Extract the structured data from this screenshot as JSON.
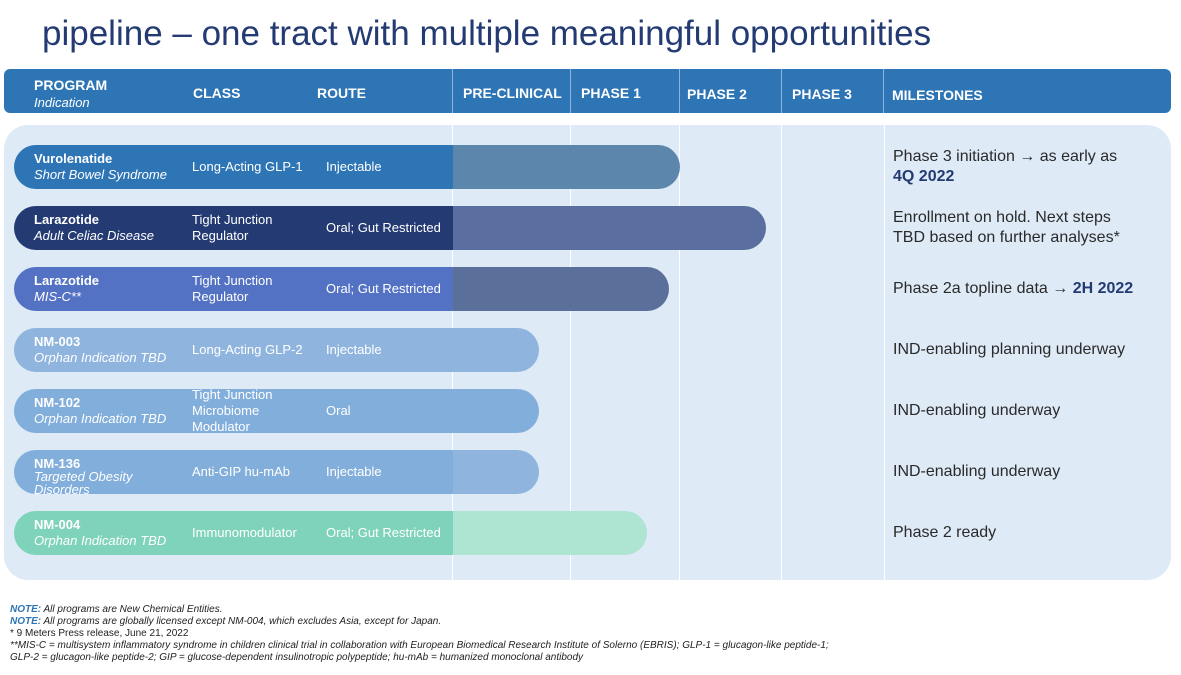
{
  "title": "pipeline – one tract with multiple meaningful opportunities",
  "header": {
    "program": "PROGRAM",
    "indication": "Indication",
    "class": "CLASS",
    "route": "ROUTE",
    "preclinical": "PRE-CLINICAL",
    "phase1": "PHASE 1",
    "phase2": "PHASE 2",
    "phase3": "PHASE 3",
    "milestones": "MILESTONES"
  },
  "chart_data": {
    "type": "bar",
    "orientation": "horizontal",
    "stages": [
      "PRE-CLINICAL",
      "PHASE 1",
      "PHASE 2",
      "PHASE 3"
    ],
    "programs": [
      {
        "program": "Vurolenatide",
        "indication": "Short Bowel Syndrome",
        "class_lines": [
          "Long-Acting  GLP-1"
        ],
        "route": "Injectable",
        "progress_stages": 2.1,
        "color": "#2e75b6",
        "right_color": "#5d86ad",
        "milestone_text": "Phase 3 initiation → as early as",
        "milestone_bold": "4Q 2022"
      },
      {
        "program": "Larazotide",
        "indication": "Adult Celiac Disease",
        "class_lines": [
          "Tight Junction",
          "Regulator"
        ],
        "route": "Oral; Gut Restricted",
        "progress_stages": 2.9,
        "color": "#243a73",
        "right_color": "#5a6f9f",
        "milestone_text": "Enrollment on hold.  Next steps",
        "milestone_text2": "TBD based on further analyses*"
      },
      {
        "program": "Larazotide",
        "indication": "MIS-C**",
        "class_lines": [
          "Tight Junction",
          "Regulator"
        ],
        "route": "Oral; Gut Restricted",
        "progress_stages": 2.0,
        "color": "#5472c4",
        "right_color": "#5b6f9b",
        "milestone_text": "Phase 2a topline data → ",
        "milestone_bold": "2H 2022"
      },
      {
        "program": "NM-003",
        "indication": "Orphan  Indication TBD",
        "class_lines": [
          "Long-Acting  GLP-2"
        ],
        "route": "Injectable",
        "progress_stages": 0.8,
        "color": "#8fb5df",
        "right_color": "#8fb5df",
        "milestone_text": "IND-enabling planning underway"
      },
      {
        "program": "NM-102",
        "indication": "Orphan  Indication TBD",
        "class_lines": [
          "Tight Junction",
          "Microbiome",
          "Modulator"
        ],
        "route": "Oral",
        "progress_stages": 0.8,
        "color": "#82aedb",
        "right_color": "#82aedb",
        "milestone_text": "IND-enabling underway"
      },
      {
        "program": "NM-136",
        "indication": "Targeted Obesity Disorders",
        "class_lines": [
          "Anti-GIP  hu-mAb"
        ],
        "route": "Injectable",
        "progress_stages": 0.8,
        "color": "#82aedb",
        "right_color": "#8fb5df",
        "milestone_text": "IND-enabling underway"
      },
      {
        "program": "NM-004",
        "indication": "Orphan  Indication TBD",
        "class_lines": [
          "Immunomodulator"
        ],
        "route": "Oral; Gut Restricted",
        "progress_stages": 1.8,
        "color": "#7fd3bb",
        "right_color": "#aee4d2",
        "milestone_text": "Phase 2 ready"
      }
    ]
  },
  "notes": {
    "n1_label": "NOTE:",
    "n1": " All programs are New Chemical Entities.",
    "n2_label": "NOTE:",
    "n2": " All programs are globally licensed except NM-004, which excludes Asia, except for Japan.",
    "n3": "* 9 Meters Press release, June 21, 2022",
    "n4": "**MIS-C = multisystem inflammatory syndrome in children clinical trial in collaboration with European Biomedical Research Institute of Solerno (EBRIS); GLP-1 = glucagon-like peptide-1;",
    "n5": "GLP-2 = glucagon-like peptide-2; GIP = glucose-dependent insulinotropic polypeptide; hu-mAb = humanized monoclonal antibody"
  }
}
